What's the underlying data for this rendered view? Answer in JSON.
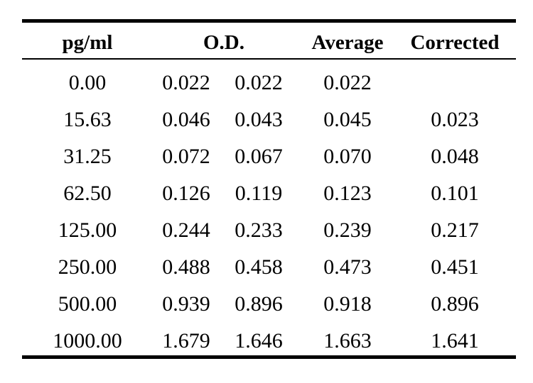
{
  "table": {
    "headers": {
      "concentration": "pg/ml",
      "od": "O.D.",
      "average": "Average",
      "corrected": "Corrected"
    },
    "rows": [
      {
        "conc": "0.00",
        "od1": "0.022",
        "od2": "0.022",
        "avg": "0.022",
        "corr": ""
      },
      {
        "conc": "15.63",
        "od1": "0.046",
        "od2": "0.043",
        "avg": "0.045",
        "corr": "0.023"
      },
      {
        "conc": "31.25",
        "od1": "0.072",
        "od2": "0.067",
        "avg": "0.070",
        "corr": "0.048"
      },
      {
        "conc": "62.50",
        "od1": "0.126",
        "od2": "0.119",
        "avg": "0.123",
        "corr": "0.101"
      },
      {
        "conc": "125.00",
        "od1": "0.244",
        "od2": "0.233",
        "avg": "0.239",
        "corr": "0.217"
      },
      {
        "conc": "250.00",
        "od1": "0.488",
        "od2": "0.458",
        "avg": "0.473",
        "corr": "0.451"
      },
      {
        "conc": "500.00",
        "od1": "0.939",
        "od2": "0.896",
        "avg": "0.918",
        "corr": "0.896"
      },
      {
        "conc": "1000.00",
        "od1": "1.679",
        "od2": "1.646",
        "avg": "1.663",
        "corr": "1.641"
      }
    ]
  }
}
